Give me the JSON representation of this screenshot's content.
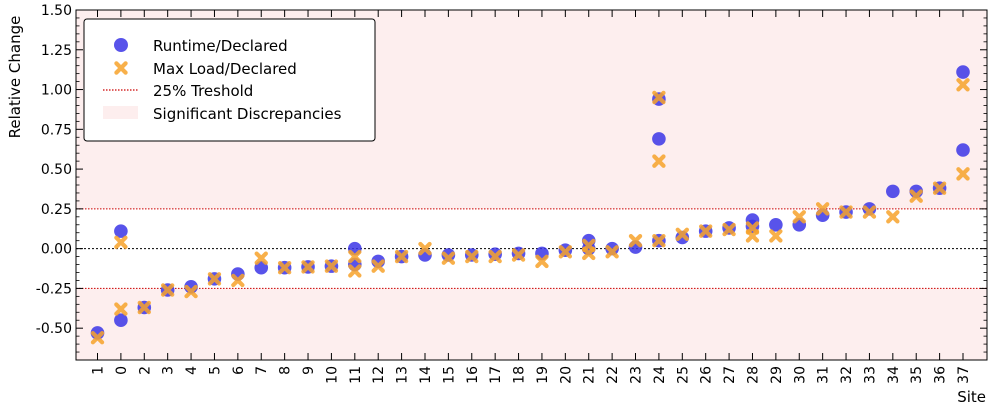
{
  "chart_data": {
    "type": "scatter",
    "title": "",
    "xlabel": "Site",
    "ylabel": "Relative Change",
    "ylim": [
      -0.7,
      1.5
    ],
    "yticks": [
      "1.50",
      "1.25",
      "1.00",
      "0.75",
      "0.50",
      "0.25",
      "0.00",
      "-0.25",
      "-0.50"
    ],
    "categories": [
      "1",
      "0",
      "2",
      "3",
      "4",
      "5",
      "6",
      "7",
      "8",
      "9",
      "10",
      "11",
      "12",
      "13",
      "14",
      "15",
      "16",
      "17",
      "18",
      "19",
      "20",
      "21",
      "22",
      "23",
      "24",
      "25",
      "26",
      "27",
      "28",
      "29",
      "30",
      "31",
      "32",
      "33",
      "34",
      "35",
      "36",
      "37"
    ],
    "threshold": 0.25,
    "colors": {
      "runtime": "#3b35e6",
      "maxload": "#f7a32b",
      "threshold_line": "#cc0000",
      "shade": "#fdeeee"
    },
    "legend": {
      "placement": "top-left",
      "entries": [
        "Runtime/Declared",
        "Max Load/Declared",
        "25% Treshold",
        "Significant Discrepancies"
      ]
    },
    "series": [
      {
        "name": "Runtime/Declared",
        "marker": "circle",
        "points": [
          {
            "x": "1",
            "y": -0.53
          },
          {
            "x": "0",
            "y": 0.11
          },
          {
            "x": "0",
            "y": -0.45
          },
          {
            "x": "2",
            "y": -0.37
          },
          {
            "x": "3",
            "y": -0.26
          },
          {
            "x": "4",
            "y": -0.24
          },
          {
            "x": "5",
            "y": -0.19
          },
          {
            "x": "6",
            "y": -0.16
          },
          {
            "x": "7",
            "y": -0.12
          },
          {
            "x": "8",
            "y": -0.12
          },
          {
            "x": "9",
            "y": -0.115
          },
          {
            "x": "10",
            "y": -0.11
          },
          {
            "x": "11",
            "y": 0.0
          },
          {
            "x": "11",
            "y": -0.1
          },
          {
            "x": "12",
            "y": -0.08
          },
          {
            "x": "13",
            "y": -0.05
          },
          {
            "x": "14",
            "y": -0.04
          },
          {
            "x": "15",
            "y": -0.04
          },
          {
            "x": "16",
            "y": -0.04
          },
          {
            "x": "17",
            "y": -0.035
          },
          {
            "x": "18",
            "y": -0.03
          },
          {
            "x": "19",
            "y": -0.03
          },
          {
            "x": "20",
            "y": -0.01
          },
          {
            "x": "21",
            "y": 0.05
          },
          {
            "x": "21",
            "y": 0.0
          },
          {
            "x": "22",
            "y": 0.0
          },
          {
            "x": "23",
            "y": 0.01
          },
          {
            "x": "24",
            "y": 0.94
          },
          {
            "x": "24",
            "y": 0.69
          },
          {
            "x": "24",
            "y": 0.05
          },
          {
            "x": "25",
            "y": 0.07
          },
          {
            "x": "26",
            "y": 0.11
          },
          {
            "x": "27",
            "y": 0.13
          },
          {
            "x": "28",
            "y": 0.18
          },
          {
            "x": "28",
            "y": 0.14
          },
          {
            "x": "29",
            "y": 0.15
          },
          {
            "x": "30",
            "y": 0.15
          },
          {
            "x": "31",
            "y": 0.21
          },
          {
            "x": "32",
            "y": 0.23
          },
          {
            "x": "33",
            "y": 0.25
          },
          {
            "x": "34",
            "y": 0.36
          },
          {
            "x": "35",
            "y": 0.36
          },
          {
            "x": "36",
            "y": 0.38
          },
          {
            "x": "37",
            "y": 1.11
          },
          {
            "x": "37",
            "y": 0.62
          }
        ]
      },
      {
        "name": "Max Load/Declared",
        "marker": "x",
        "points": [
          {
            "x": "1",
            "y": -0.56
          },
          {
            "x": "0",
            "y": 0.04
          },
          {
            "x": "0",
            "y": -0.38
          },
          {
            "x": "2",
            "y": -0.37
          },
          {
            "x": "3",
            "y": -0.26
          },
          {
            "x": "4",
            "y": -0.27
          },
          {
            "x": "5",
            "y": -0.19
          },
          {
            "x": "6",
            "y": -0.2
          },
          {
            "x": "7",
            "y": -0.06
          },
          {
            "x": "8",
            "y": -0.12
          },
          {
            "x": "9",
            "y": -0.115
          },
          {
            "x": "10",
            "y": -0.11
          },
          {
            "x": "11",
            "y": -0.05
          },
          {
            "x": "11",
            "y": -0.14
          },
          {
            "x": "12",
            "y": -0.11
          },
          {
            "x": "13",
            "y": -0.05
          },
          {
            "x": "14",
            "y": 0.0
          },
          {
            "x": "15",
            "y": -0.06
          },
          {
            "x": "16",
            "y": -0.05
          },
          {
            "x": "17",
            "y": -0.05
          },
          {
            "x": "18",
            "y": -0.04
          },
          {
            "x": "19",
            "y": -0.08
          },
          {
            "x": "20",
            "y": -0.02
          },
          {
            "x": "21",
            "y": 0.02
          },
          {
            "x": "21",
            "y": -0.03
          },
          {
            "x": "22",
            "y": -0.02
          },
          {
            "x": "23",
            "y": 0.05
          },
          {
            "x": "24",
            "y": 0.95
          },
          {
            "x": "24",
            "y": 0.55
          },
          {
            "x": "24",
            "y": 0.05
          },
          {
            "x": "25",
            "y": 0.09
          },
          {
            "x": "26",
            "y": 0.11
          },
          {
            "x": "27",
            "y": 0.12
          },
          {
            "x": "28",
            "y": 0.13
          },
          {
            "x": "28",
            "y": 0.08
          },
          {
            "x": "29",
            "y": 0.08
          },
          {
            "x": "30",
            "y": 0.2
          },
          {
            "x": "31",
            "y": 0.25
          },
          {
            "x": "32",
            "y": 0.23
          },
          {
            "x": "33",
            "y": 0.23
          },
          {
            "x": "34",
            "y": 0.2
          },
          {
            "x": "35",
            "y": 0.33
          },
          {
            "x": "36",
            "y": 0.38
          },
          {
            "x": "37",
            "y": 1.03
          },
          {
            "x": "37",
            "y": 0.47
          }
        ]
      }
    ]
  }
}
